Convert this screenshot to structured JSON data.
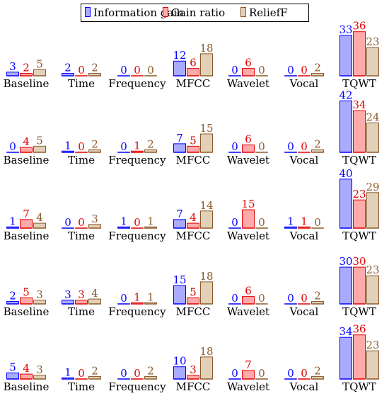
{
  "chart_data": {
    "type": "bar",
    "legend_position": "top-center",
    "legend": [
      {
        "name": "Information gain",
        "color": "#0000ff",
        "fill": "#aaaaff"
      },
      {
        "name": "Gain ratio",
        "color": "#e00000",
        "fill": "#ffaaaa"
      },
      {
        "name": "ReliefF",
        "color": "#8b5a2b",
        "fill": "#e2d0b8"
      }
    ],
    "categories": [
      "Baseline",
      "Time",
      "Frequency",
      "MFCC",
      "Wavelet",
      "Vocal",
      "TQWT"
    ],
    "panels": [
      {
        "series": [
          {
            "name": "Information gain",
            "values": [
              3,
              2,
              0,
              12,
              0,
              0,
              33
            ]
          },
          {
            "name": "Gain ratio",
            "values": [
              2,
              0,
              0,
              6,
              6,
              0,
              36
            ]
          },
          {
            "name": "ReliefF",
            "values": [
              5,
              2,
              0,
              18,
              0,
              2,
              23
            ]
          }
        ]
      },
      {
        "series": [
          {
            "name": "Information gain",
            "values": [
              0,
              1,
              0,
              7,
              0,
              0,
              42
            ]
          },
          {
            "name": "Gain ratio",
            "values": [
              4,
              0,
              1,
              5,
              6,
              0,
              34
            ]
          },
          {
            "name": "ReliefF",
            "values": [
              5,
              2,
              2,
              15,
              0,
              2,
              24
            ]
          }
        ]
      },
      {
        "series": [
          {
            "name": "Information gain",
            "values": [
              1,
              0,
              1,
              7,
              0,
              1,
              40
            ]
          },
          {
            "name": "Gain ratio",
            "values": [
              7,
              0,
              0,
              4,
              15,
              1,
              23
            ]
          },
          {
            "name": "ReliefF",
            "values": [
              4,
              3,
              1,
              14,
              0,
              0,
              29
            ]
          }
        ]
      },
      {
        "series": [
          {
            "name": "Information gain",
            "values": [
              2,
              3,
              0,
              15,
              0,
              0,
              30
            ]
          },
          {
            "name": "Gain ratio",
            "values": [
              5,
              3,
              1,
              5,
              6,
              0,
              30
            ]
          },
          {
            "name": "ReliefF",
            "values": [
              3,
              4,
              1,
              18,
              0,
              2,
              23
            ]
          }
        ]
      },
      {
        "series": [
          {
            "name": "Information gain",
            "values": [
              5,
              1,
              0,
              10,
              0,
              0,
              34
            ]
          },
          {
            "name": "Gain ratio",
            "values": [
              4,
              0,
              0,
              3,
              7,
              0,
              36
            ]
          },
          {
            "name": "ReliefF",
            "values": [
              3,
              2,
              2,
              18,
              0,
              2,
              23
            ]
          }
        ]
      }
    ]
  }
}
